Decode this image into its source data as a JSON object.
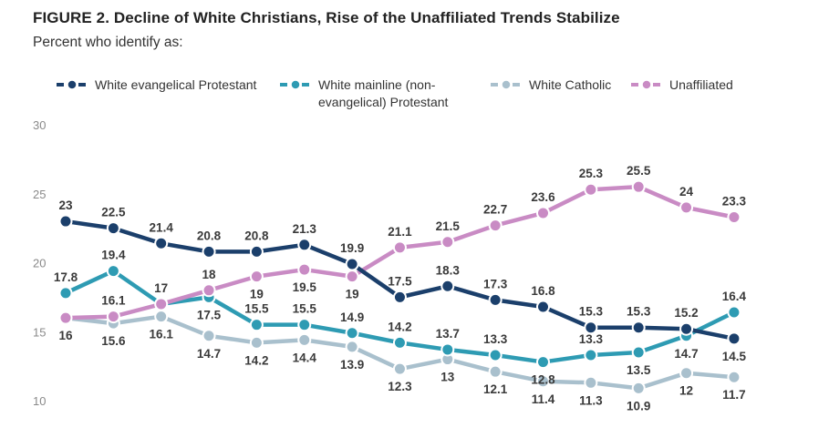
{
  "figure": {
    "title": "FIGURE 2.  Decline of White Christians, Rise of the Unaffiliated Trends Stabilize",
    "subtitle": "Percent who identify as:"
  },
  "legend": [
    {
      "label": "White evangelical Protestant",
      "color": "#1b3f6b"
    },
    {
      "label": "White mainline (non-\nevangelical) Protestant",
      "color": "#2e9bb3"
    },
    {
      "label": "White Catholic",
      "color": "#a9c0cd"
    },
    {
      "label": "Unaffiliated",
      "color": "#c98bc4"
    }
  ],
  "chart_data": {
    "type": "line",
    "ylim": [
      10,
      30
    ],
    "yticks": [
      "10",
      "15",
      "20",
      "25",
      "30"
    ],
    "grid": false,
    "legend_position": "top",
    "series": [
      {
        "name": "White evangelical Protestant",
        "color": "#1b3f6b",
        "values": [
          23,
          22.5,
          21.4,
          20.8,
          20.8,
          21.3,
          19.9,
          17.5,
          18.3,
          17.3,
          16.8,
          15.3,
          15.3,
          15.2,
          14.5
        ],
        "labels": [
          "23",
          "22.5",
          "21.4",
          "20.8",
          "20.8",
          "21.3",
          "19.9",
          "17.5",
          "18.3",
          "17.3",
          "16.8",
          "15.3",
          "15.3",
          "15.2",
          "14.5"
        ]
      },
      {
        "name": "White mainline (non-evangelical) Protestant",
        "color": "#2e9bb3",
        "values": [
          17.8,
          19.4,
          17,
          17.5,
          15.5,
          15.5,
          14.9,
          14.2,
          13.7,
          13.3,
          12.8,
          13.3,
          13.5,
          14.7,
          16.4
        ],
        "labels": [
          "17.8",
          "19.4",
          "17",
          "17.5",
          "15.5",
          "15.5",
          "14.9",
          "14.2",
          "13.7",
          "13.3",
          "12.8",
          "13.3",
          "13.5",
          "14.7",
          "16.4"
        ]
      },
      {
        "name": "White Catholic",
        "color": "#a9c0cd",
        "values": [
          16,
          15.6,
          16.1,
          14.7,
          14.2,
          14.4,
          13.9,
          12.3,
          13,
          12.1,
          11.4,
          11.3,
          10.9,
          12,
          11.7
        ],
        "labels": [
          "16",
          "15.6",
          "16.1",
          "14.7",
          "14.2",
          "14.4",
          "13.9",
          "12.3",
          "13",
          "12.1",
          "11.4",
          "11.3",
          "10.9",
          "12",
          "11.7"
        ]
      },
      {
        "name": "Unaffiliated",
        "color": "#c98bc4",
        "values": [
          16,
          16.1,
          17,
          18,
          19,
          19.5,
          19,
          21.1,
          21.5,
          22.7,
          23.6,
          25.3,
          25.5,
          24,
          23.3
        ],
        "labels": [
          "",
          "16.1",
          "",
          "18",
          "19",
          "19.5",
          "19",
          "21.1",
          "21.5",
          "22.7",
          "23.6",
          "25.3",
          "25.5",
          "24",
          "23.3"
        ]
      }
    ]
  }
}
